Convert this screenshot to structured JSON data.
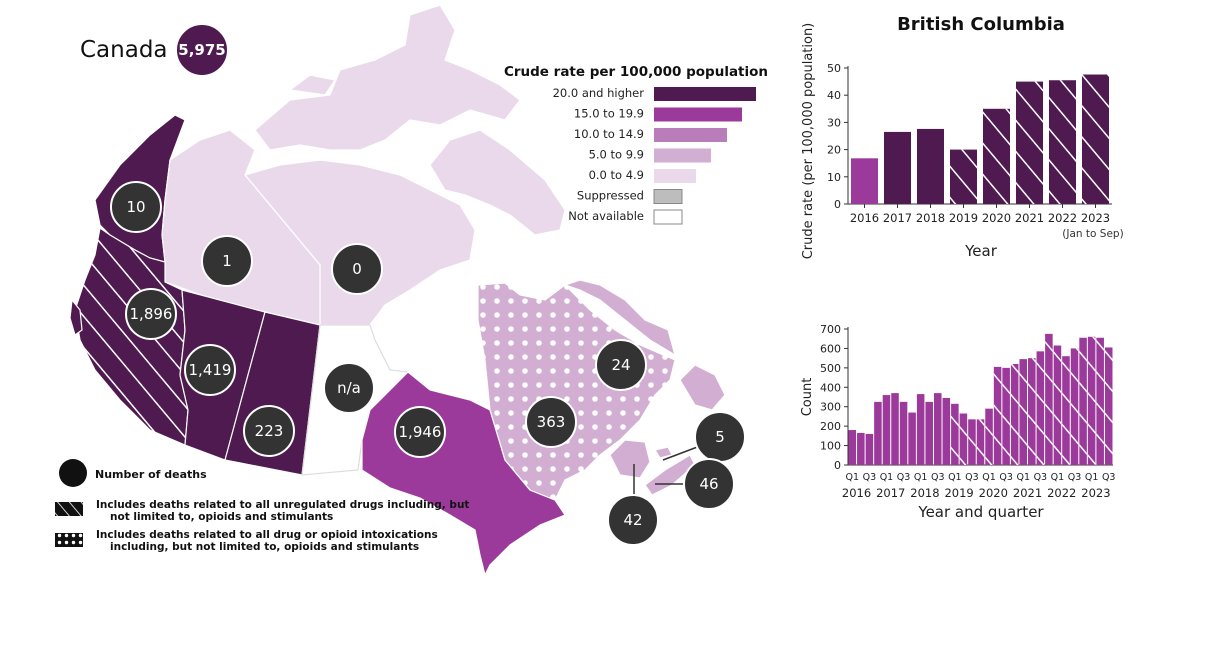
{
  "map": {
    "country_label": "Canada",
    "country_total": "5,975",
    "bubbles": [
      {
        "id": "yukon",
        "value": "10"
      },
      {
        "id": "nwt",
        "value": "1"
      },
      {
        "id": "nunavut",
        "value": "0"
      },
      {
        "id": "bc",
        "value": "1,896"
      },
      {
        "id": "alberta",
        "value": "1,419"
      },
      {
        "id": "saskatchewan",
        "value": "223"
      },
      {
        "id": "manitoba",
        "value": "n/a"
      },
      {
        "id": "ontario",
        "value": "1,946"
      },
      {
        "id": "quebec",
        "value": "363"
      },
      {
        "id": "nl",
        "value": "24"
      },
      {
        "id": "pei",
        "value": "5"
      },
      {
        "id": "ns",
        "value": "46"
      },
      {
        "id": "nb",
        "value": "42"
      }
    ],
    "legend": {
      "title": "Crude rate per 100,000 population",
      "items": [
        {
          "label": "20.0 and higher",
          "color": "#4f1a4f"
        },
        {
          "label": "15.0 to 19.9",
          "color": "#9c3a9c"
        },
        {
          "label": "10.0 to 14.9",
          "color": "#b97db9"
        },
        {
          "label": "5.0 to 9.9",
          "color": "#d2aed2"
        },
        {
          "label": "0.0 to 4.9",
          "color": "#ead9ea"
        },
        {
          "label": "Suppressed",
          "color": "#bdbdbd"
        },
        {
          "label": "Not available",
          "color": "#ffffff"
        }
      ]
    },
    "notes": {
      "bubble": "Number of deaths",
      "hatch_line1": "Includes deaths related to all unregulated drugs including, but",
      "hatch_line2": "not limited to, opioids and stimulants",
      "dots_line1": "Includes deaths related to all drug or opioid intoxications",
      "dots_line2": "including, but not limited to, opioids and stimulants"
    }
  },
  "chart_data": [
    {
      "type": "bar",
      "title": "British Columbia",
      "xlabel": "Year",
      "ylabel": "Crude rate (per 100,000 population)",
      "ylim": [
        0,
        50
      ],
      "yticks": [
        0,
        10,
        20,
        30,
        40,
        50
      ],
      "categories": [
        "2016",
        "2017",
        "2018",
        "2019",
        "2020",
        "2021",
        "2022",
        "2023"
      ],
      "category_note": "(Jan to Sep)",
      "values": [
        16.8,
        26.5,
        27.6,
        20.0,
        35.0,
        45.0,
        45.5,
        47.6
      ],
      "colors": [
        "#9c3a9c",
        "#4f1a4f",
        "#4f1a4f",
        "#4f1a4f",
        "#4f1a4f",
        "#4f1a4f",
        "#4f1a4f",
        "#4f1a4f"
      ],
      "hatched": [
        false,
        false,
        false,
        true,
        true,
        true,
        true,
        true
      ],
      "grid": false
    },
    {
      "type": "bar",
      "xlabel": "Year and quarter",
      "ylabel": "Count",
      "ylim": [
        0,
        700
      ],
      "yticks": [
        0,
        100,
        200,
        300,
        400,
        500,
        600,
        700
      ],
      "quarter_labels": [
        "Q1",
        "Q3",
        "Q1",
        "Q3",
        "Q1",
        "Q3",
        "Q1",
        "Q3",
        "Q1",
        "Q3",
        "Q1",
        "Q3",
        "Q1",
        "Q3",
        "Q1",
        "Q3"
      ],
      "year_labels": [
        "2016",
        "2017",
        "2018",
        "2019",
        "2020",
        "2021",
        "2022",
        "2023"
      ],
      "values": [
        180,
        165,
        160,
        325,
        360,
        370,
        325,
        270,
        365,
        325,
        370,
        345,
        315,
        265,
        235,
        235,
        290,
        505,
        500,
        520,
        545,
        550,
        585,
        675,
        615,
        560,
        600,
        655,
        660,
        655,
        605
      ],
      "hatch_from_index": 12,
      "color": "#9c3a9c",
      "grid": false
    }
  ]
}
